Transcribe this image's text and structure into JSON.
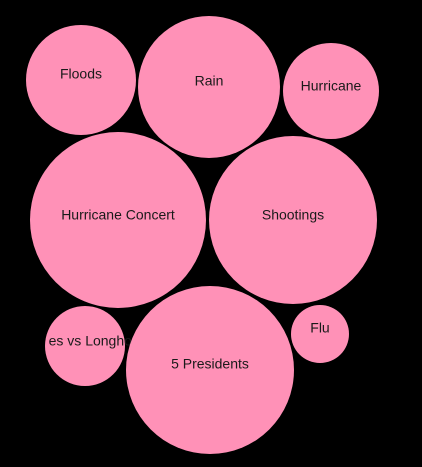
{
  "chart_data": {
    "type": "bubble",
    "bubbles": [
      {
        "label": "Floods"
      },
      {
        "label": "Rain"
      },
      {
        "label": "Hurricane"
      },
      {
        "label": "Hurricane Concert"
      },
      {
        "label": "Shootings"
      },
      {
        "label": "es vs Longhorns"
      },
      {
        "label": "5 Presidents"
      },
      {
        "label": "Flu"
      }
    ],
    "colors": {
      "background": "#000000",
      "bubble_fill": "#ff91b7",
      "label": "#1a1a1a"
    }
  }
}
